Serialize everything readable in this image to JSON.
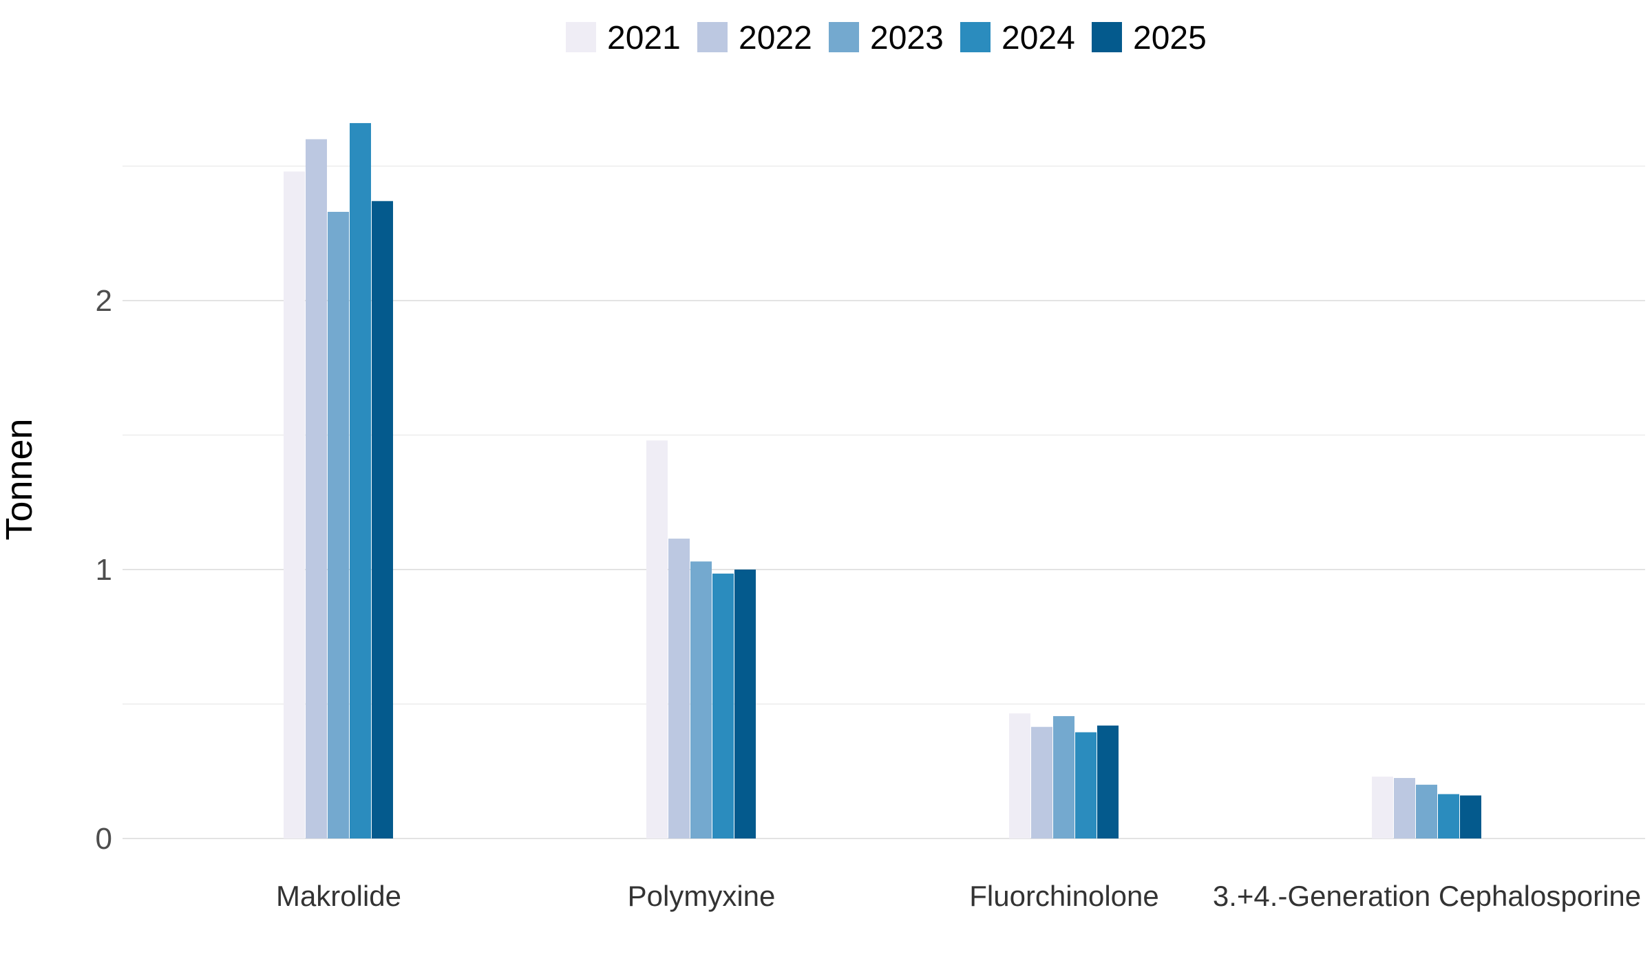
{
  "chart_data": {
    "type": "bar",
    "title": "",
    "xlabel": "",
    "ylabel": "Tonnen",
    "categories": [
      "Makrolide",
      "Polymyxine",
      "Fluorchinolone",
      "3.+4.-Generation Cephalosporine"
    ],
    "series": [
      {
        "name": "2021",
        "color": "#efedf5",
        "values": [
          2.48,
          1.48,
          0.465,
          0.23
        ]
      },
      {
        "name": "2022",
        "color": "#bcc8e1",
        "values": [
          2.6,
          1.115,
          0.415,
          0.225
        ]
      },
      {
        "name": "2023",
        "color": "#74a9cf",
        "values": [
          2.33,
          1.03,
          0.455,
          0.2
        ]
      },
      {
        "name": "2024",
        "color": "#2b8cbe",
        "values": [
          2.66,
          0.985,
          0.395,
          0.165
        ]
      },
      {
        "name": "2025",
        "color": "#045a8d",
        "values": [
          2.37,
          1.0,
          0.42,
          0.16
        ]
      }
    ],
    "ylim": [
      0,
      2.65
    ],
    "yticks": [
      0,
      1,
      2
    ],
    "grid": true,
    "legend_position": "top"
  }
}
